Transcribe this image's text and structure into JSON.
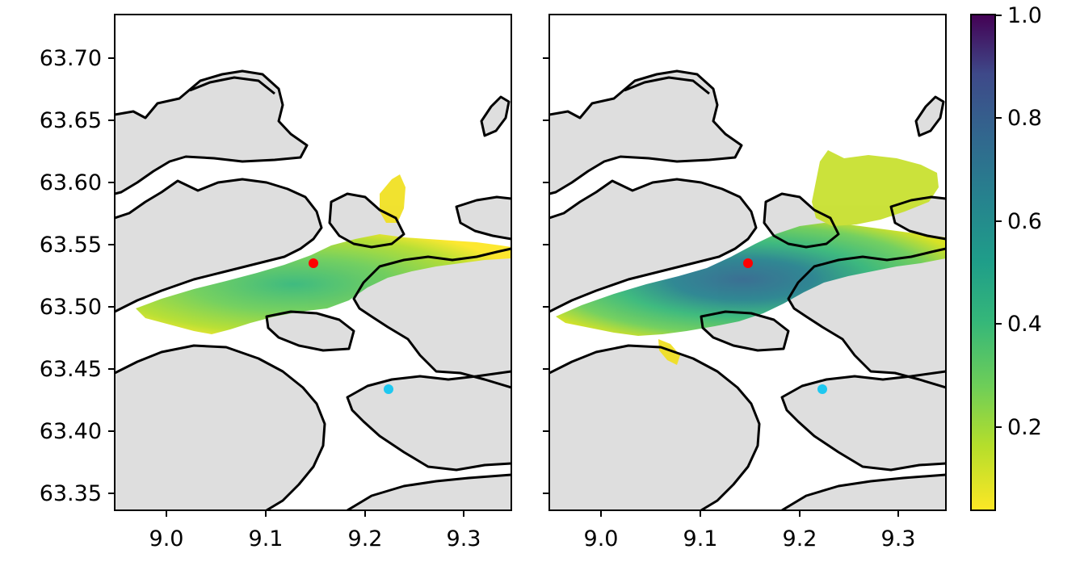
{
  "chart_data": [
    {
      "type": "heatmap",
      "panel": "left",
      "title": "",
      "xlabel": "",
      "ylabel": "",
      "xlim": [
        8.945,
        9.345
      ],
      "ylim": [
        63.335,
        63.733
      ],
      "xticks": [
        9.0,
        9.1,
        9.2,
        9.3
      ],
      "xtick_labels": [
        "9.0",
        "9.1",
        "9.2",
        "9.3"
      ],
      "yticks": [
        63.35,
        63.4,
        63.45,
        63.5,
        63.55,
        63.6,
        63.65,
        63.7
      ],
      "ytick_labels": [
        "63.35",
        "63.40",
        "63.45",
        "63.50",
        "63.55",
        "63.60",
        "63.65",
        "63.70"
      ],
      "grid": false,
      "markers": [
        {
          "lon": 9.148,
          "lat": 63.535,
          "color": "#ff0000"
        },
        {
          "lon": 9.223,
          "lat": 63.433,
          "color": "#1ec8f0"
        }
      ],
      "plume_max_value": 0.45
    },
    {
      "type": "heatmap",
      "panel": "right",
      "title": "",
      "xlabel": "",
      "ylabel": "",
      "xlim": [
        8.945,
        9.345
      ],
      "ylim": [
        63.335,
        63.733
      ],
      "xticks": [
        9.0,
        9.1,
        9.2,
        9.3
      ],
      "xtick_labels": [
        "9.0",
        "9.1",
        "9.2",
        "9.3"
      ],
      "yticks": [
        63.35,
        63.4,
        63.45,
        63.5,
        63.55,
        63.6,
        63.65,
        63.7
      ],
      "ytick_labels": [
        "",
        "",
        "",
        "",
        "",
        "",
        "",
        ""
      ],
      "grid": false,
      "markers": [
        {
          "lon": 9.148,
          "lat": 63.535,
          "color": "#ff0000"
        },
        {
          "lon": 9.223,
          "lat": 63.433,
          "color": "#1ec8f0"
        }
      ],
      "plume_max_value": 0.7
    }
  ],
  "colorbar": {
    "colormap": "viridis",
    "range": [
      0.04,
      1.0
    ],
    "ticks": [
      0.2,
      0.4,
      0.6,
      0.8,
      1.0
    ],
    "tick_labels": [
      "0.2",
      "0.4",
      "0.6",
      "0.8",
      "1.0"
    ]
  },
  "colors": {
    "land": "#dedede",
    "coastline": "#000000",
    "water": "#ffffff"
  }
}
